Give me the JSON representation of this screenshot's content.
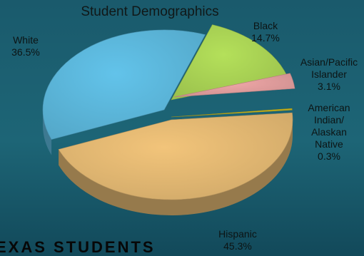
{
  "chart_data": {
    "type": "pie",
    "title": "Student Demographics",
    "slices": [
      {
        "label": "Hispanic",
        "value": 45.3,
        "value_label": "45.3%",
        "color": "#f2c47a"
      },
      {
        "label": "White",
        "value": 36.5,
        "value_label": "36.5%",
        "color": "#62c3ea"
      },
      {
        "label": "Black",
        "value": 14.7,
        "value_label": "14.7%",
        "color": "#b4e05a"
      },
      {
        "label": "Asian/Pacific Islander",
        "value": 3.1,
        "value_label": "3.1%",
        "color": "#f0a7a7"
      },
      {
        "label": "American Indian/ Alaskan Native",
        "value": 0.3,
        "value_label": "0.3%",
        "color": "#d8c21f"
      }
    ],
    "style": "3d-exploded"
  },
  "footer_text": "EXAS STUDENTS"
}
